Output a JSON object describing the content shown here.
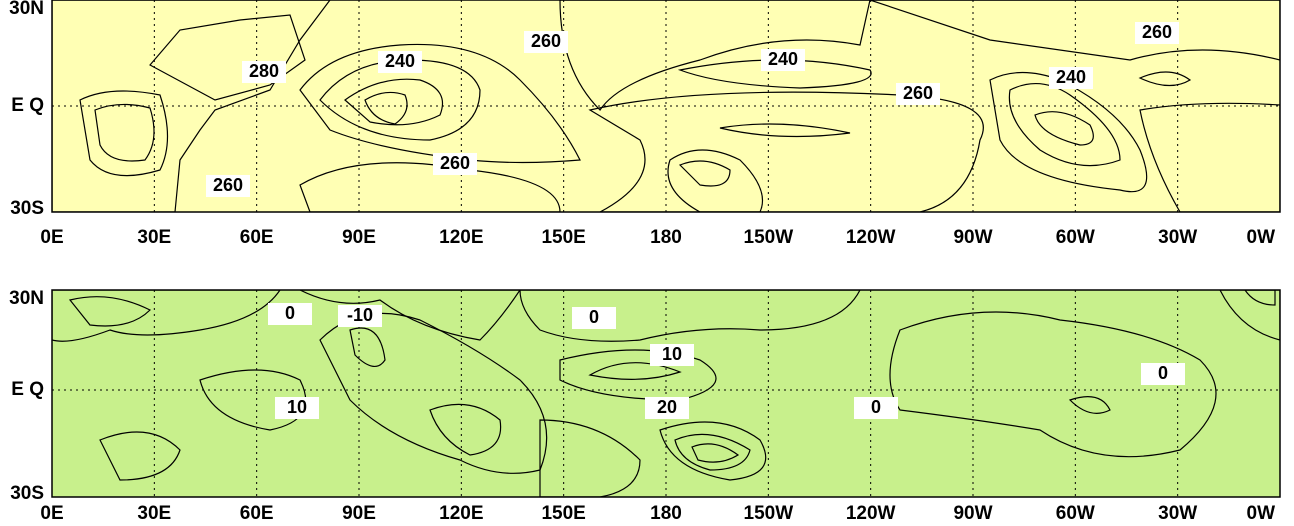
{
  "panels": [
    {
      "y_labels": [
        "30N",
        "E Q",
        "30S"
      ],
      "x_labels": [
        "0E",
        "30E",
        "60E",
        "90E",
        "120E",
        "150E",
        "180",
        "150W",
        "120W",
        "90W",
        "60W",
        "30W",
        "0W"
      ],
      "contour_labels": [
        "280",
        "240",
        "260",
        "240",
        "260",
        "240",
        "260",
        "260",
        "260"
      ]
    },
    {
      "y_labels": [
        "30N",
        "E Q",
        "30S"
      ],
      "x_labels": [
        "0E",
        "30E",
        "60E",
        "90E",
        "120E",
        "150E",
        "180",
        "150W",
        "120W",
        "90W",
        "60W",
        "30W",
        "0W"
      ],
      "contour_labels": [
        "0",
        "-10",
        "0",
        "10",
        "10",
        "20",
        "0",
        "0"
      ]
    }
  ]
}
